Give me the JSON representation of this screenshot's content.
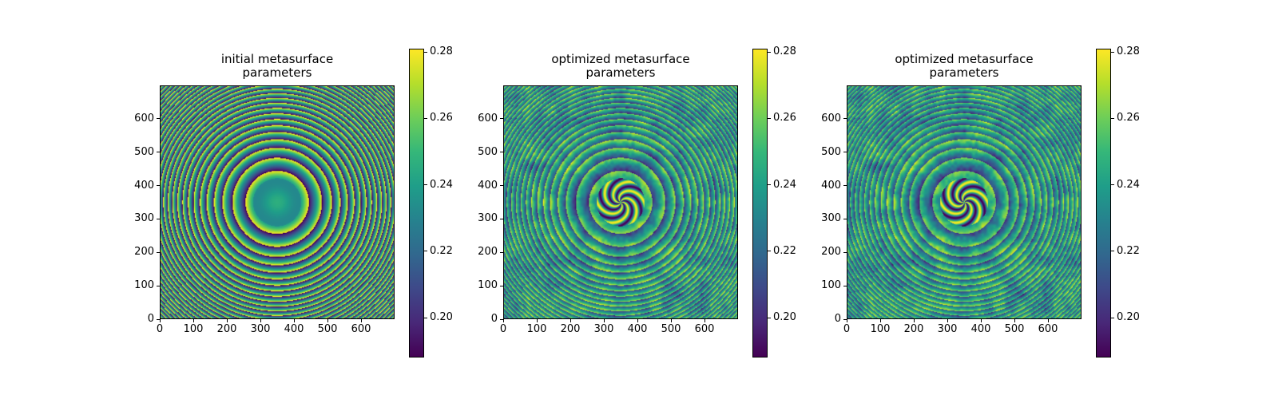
{
  "chart_data": [
    {
      "type": "heatmap",
      "title": "initial metasurface\nparameters",
      "xlabel": "",
      "ylabel": "",
      "xlim": [
        0,
        700
      ],
      "ylim": [
        700,
        0
      ],
      "xticks": [
        0,
        100,
        200,
        300,
        400,
        500,
        600
      ],
      "yticks": [
        0,
        100,
        200,
        300,
        400,
        500,
        600
      ],
      "colormap": "viridis",
      "colorbar": {
        "range": [
          0.188,
          0.281
        ],
        "ticks": [
          "0.28",
          "0.26",
          "0.24",
          "0.22",
          "0.20"
        ],
        "tick_values": [
          0.28,
          0.26,
          0.24,
          0.22,
          0.2
        ]
      },
      "pattern": {
        "kind": "concentric-rings",
        "center": [
          350,
          350
        ],
        "noise": 0.0
      }
    },
    {
      "type": "heatmap",
      "title": "optimized metasurface\nparameters",
      "xlabel": "",
      "ylabel": "",
      "xlim": [
        0,
        700
      ],
      "ylim": [
        700,
        0
      ],
      "xticks": [
        0,
        100,
        200,
        300,
        400,
        500,
        600
      ],
      "yticks": [
        0,
        100,
        200,
        300,
        400,
        500,
        600
      ],
      "colormap": "viridis",
      "colorbar": {
        "range": [
          0.188,
          0.281
        ],
        "ticks": [
          "0.28",
          "0.26",
          "0.24",
          "0.22",
          "0.20"
        ],
        "tick_values": [
          0.28,
          0.26,
          0.24,
          0.22,
          0.2
        ]
      },
      "pattern": {
        "kind": "concentric-rings",
        "center": [
          350,
          350
        ],
        "noise": 0.35
      }
    },
    {
      "type": "heatmap",
      "title": "optimized metasurface\nparameters",
      "xlabel": "",
      "ylabel": "",
      "xlim": [
        0,
        700
      ],
      "ylim": [
        700,
        0
      ],
      "xticks": [
        0,
        100,
        200,
        300,
        400,
        500,
        600
      ],
      "yticks": [
        0,
        100,
        200,
        300,
        400,
        500,
        600
      ],
      "colormap": "viridis",
      "colorbar": {
        "range": [
          0.188,
          0.281
        ],
        "ticks": [
          "0.28",
          "0.26",
          "0.24",
          "0.22",
          "0.20"
        ],
        "tick_values": [
          0.28,
          0.26,
          0.24,
          0.22,
          0.2
        ]
      },
      "pattern": {
        "kind": "concentric-rings",
        "center": [
          350,
          350
        ],
        "noise": 0.4
      }
    }
  ]
}
